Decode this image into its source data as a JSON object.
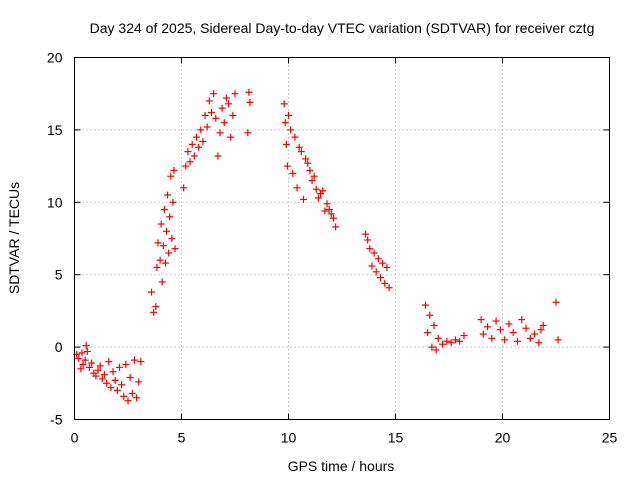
{
  "chart_data": {
    "type": "scatter",
    "title": "Day 324 of 2025, Sidereal Day-to-day VTEC variation (SDTVAR) for receiver cztg",
    "xlabel": "GPS time / hours",
    "ylabel": "SDTVAR / TECUs",
    "xlim": [
      0,
      25
    ],
    "ylim": [
      -5,
      20
    ],
    "xticks": [
      0,
      5,
      10,
      15,
      20,
      25
    ],
    "yticks": [
      -5,
      0,
      5,
      10,
      15,
      20
    ],
    "xtick_labels": [
      "0",
      "5",
      "10",
      "15",
      "20",
      "25"
    ],
    "ytick_labels": [
      "-5",
      "0",
      "5",
      "10",
      "15",
      "20"
    ],
    "grid": true,
    "marker": "+",
    "color": "#ff0000",
    "series": [
      {
        "name": "SDTVAR",
        "x": [
          0.1,
          0.2,
          0.3,
          0.35,
          0.4,
          0.5,
          0.55,
          0.6,
          0.7,
          0.8,
          0.9,
          1.0,
          1.1,
          1.2,
          1.3,
          1.4,
          1.5,
          1.6,
          1.7,
          1.8,
          1.9,
          2.0,
          2.1,
          2.2,
          2.3,
          2.4,
          2.5,
          2.6,
          2.7,
          2.8,
          2.9,
          3.0,
          3.1,
          3.6,
          3.7,
          3.8,
          3.85,
          3.9,
          4.0,
          4.05,
          4.1,
          4.15,
          4.2,
          4.25,
          4.3,
          4.35,
          4.4,
          4.45,
          4.5,
          4.55,
          4.6,
          4.65,
          4.7,
          5.1,
          5.2,
          5.3,
          5.4,
          5.5,
          5.6,
          5.7,
          5.8,
          5.9,
          6.0,
          6.1,
          6.2,
          6.3,
          6.4,
          6.5,
          6.6,
          6.7,
          6.8,
          6.9,
          7.0,
          7.1,
          7.2,
          7.3,
          7.4,
          7.5,
          8.1,
          8.15,
          8.2,
          9.8,
          9.85,
          9.9,
          9.95,
          10.0,
          10.1,
          10.2,
          10.3,
          10.4,
          10.5,
          10.6,
          10.7,
          10.8,
          10.9,
          11.0,
          11.1,
          11.2,
          11.3,
          11.4,
          11.5,
          11.6,
          11.7,
          11.8,
          11.9,
          12.0,
          12.1,
          12.2,
          13.6,
          13.7,
          13.8,
          13.9,
          14.0,
          14.1,
          14.2,
          14.3,
          14.4,
          14.5,
          14.6,
          14.7,
          16.4,
          16.5,
          16.6,
          16.7,
          16.8,
          16.9,
          17.0,
          17.2,
          17.4,
          17.6,
          17.8,
          18.0,
          18.2,
          19.0,
          19.1,
          19.3,
          19.5,
          19.7,
          19.9,
          20.1,
          20.3,
          20.5,
          20.7,
          20.9,
          21.1,
          21.3,
          21.5,
          21.7,
          21.8,
          21.9,
          22.5,
          22.6
        ],
        "y": [
          -0.5,
          -0.8,
          -1.5,
          -0.4,
          -1.2,
          -0.9,
          0.1,
          -0.3,
          -1.4,
          -1.1,
          -1.8,
          -2.0,
          -1.6,
          -1.3,
          -2.2,
          -1.9,
          -2.5,
          -1.0,
          -2.8,
          -1.7,
          -2.3,
          -3.0,
          -1.4,
          -2.6,
          -3.4,
          -1.2,
          -3.7,
          -2.1,
          -3.2,
          -0.9,
          -3.5,
          -2.4,
          -1.0,
          3.8,
          2.4,
          2.8,
          5.5,
          7.2,
          6.0,
          8.5,
          4.5,
          7.0,
          9.5,
          5.8,
          8.0,
          10.5,
          6.5,
          9.0,
          11.8,
          7.5,
          10.0,
          12.2,
          6.8,
          11.0,
          12.5,
          13.5,
          12.8,
          14.0,
          13.2,
          14.5,
          13.8,
          15.0,
          14.2,
          16.0,
          15.2,
          17.0,
          16.2,
          17.5,
          15.8,
          13.2,
          14.8,
          16.5,
          15.5,
          17.2,
          16.8,
          14.5,
          16.0,
          17.5,
          14.8,
          17.6,
          16.9,
          16.8,
          15.5,
          14.0,
          12.5,
          16.0,
          15.0,
          12.0,
          14.5,
          11.0,
          13.8,
          13.5,
          10.2,
          13.0,
          12.7,
          12.2,
          11.5,
          11.8,
          10.9,
          10.3,
          10.6,
          10.8,
          9.4,
          9.9,
          9.5,
          9.2,
          8.9,
          8.3,
          7.8,
          7.4,
          6.8,
          5.6,
          6.5,
          5.2,
          6.1,
          4.8,
          5.8,
          4.4,
          5.5,
          4.1,
          2.9,
          1.0,
          2.2,
          0.0,
          1.5,
          -0.2,
          0.6,
          0.2,
          0.4,
          0.3,
          0.5,
          0.4,
          0.8,
          1.9,
          0.9,
          1.4,
          0.6,
          1.8,
          1.2,
          0.5,
          1.6,
          1.0,
          0.4,
          1.9,
          1.3,
          0.6,
          0.9,
          0.3,
          1.2,
          1.5,
          3.1,
          0.5
        ]
      }
    ]
  }
}
